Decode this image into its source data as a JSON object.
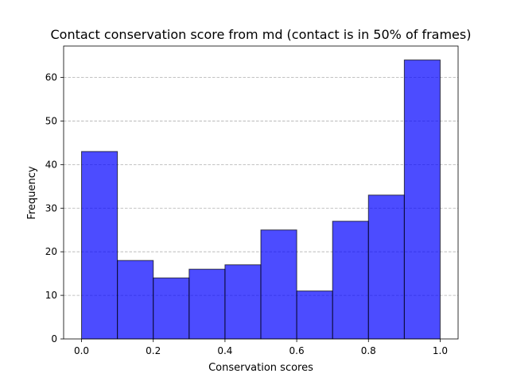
{
  "chart_data": {
    "type": "histogram",
    "title": "Contact conservation score from md (contact is in 50% of frames)",
    "xlabel": "Conservation scores",
    "ylabel": "Frequency",
    "bin_edges": [
      0.0,
      0.1,
      0.2,
      0.3,
      0.4,
      0.5,
      0.6,
      0.7,
      0.8,
      0.9,
      1.0
    ],
    "values": [
      43,
      18,
      14,
      16,
      17,
      25,
      11,
      27,
      33,
      64
    ],
    "xlim": [
      -0.05,
      1.05
    ],
    "ylim": [
      0,
      67.2
    ],
    "xticks": [
      0.0,
      0.2,
      0.4,
      0.6,
      0.8,
      1.0
    ],
    "xtick_labels": [
      "0.0",
      "0.2",
      "0.4",
      "0.6",
      "0.8",
      "1.0"
    ],
    "yticks": [
      0,
      10,
      20,
      30,
      40,
      50,
      60
    ],
    "ytick_labels": [
      "0",
      "10",
      "20",
      "30",
      "40",
      "50",
      "60"
    ],
    "grid": "y-dashed",
    "bar_color": "#0000ff",
    "bar_opacity": 0.7,
    "edge_color": "#000000"
  }
}
